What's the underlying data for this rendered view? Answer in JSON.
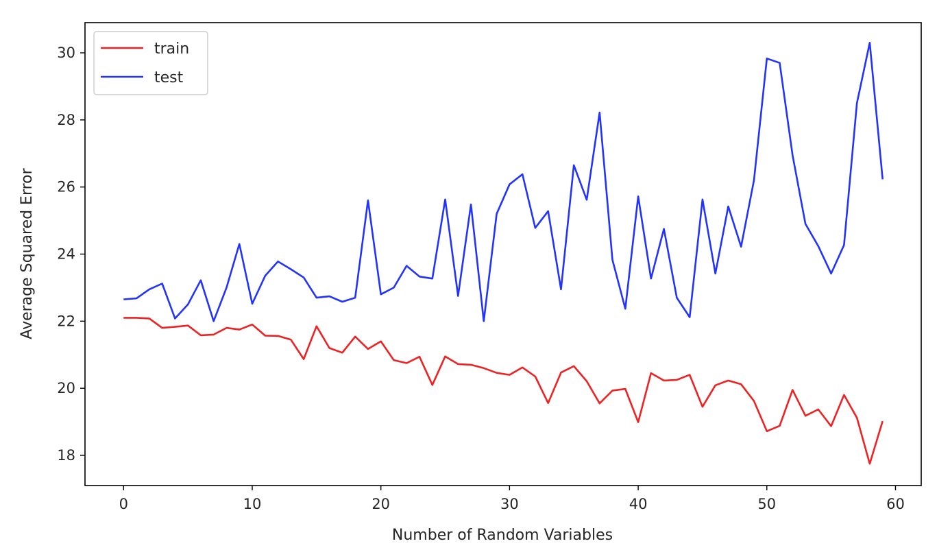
{
  "chart_data": {
    "type": "line",
    "title": "",
    "xlabel": "Number of Random Variables",
    "ylabel": "Average Squared Error",
    "xlim": [
      -3,
      62
    ],
    "ylim": [
      17.1,
      30.9
    ],
    "xticks": [
      0,
      10,
      20,
      30,
      40,
      50,
      60
    ],
    "yticks": [
      18,
      20,
      22,
      24,
      26,
      28,
      30
    ],
    "grid": false,
    "legend_position": "top-left",
    "x": [
      0,
      1,
      2,
      3,
      4,
      5,
      6,
      7,
      8,
      9,
      10,
      11,
      12,
      13,
      14,
      15,
      16,
      17,
      18,
      19,
      20,
      21,
      22,
      23,
      24,
      25,
      26,
      27,
      28,
      29,
      30,
      31,
      32,
      33,
      34,
      35,
      36,
      37,
      38,
      39,
      40,
      41,
      42,
      43,
      44,
      45,
      46,
      47,
      48,
      49,
      50,
      51,
      52,
      53,
      54,
      55,
      56,
      57,
      58,
      59
    ],
    "series": [
      {
        "name": "train",
        "color": "#ee2222",
        "values": [
          22.1,
          22.1,
          22.08,
          21.8,
          21.83,
          21.87,
          21.58,
          21.6,
          21.8,
          21.75,
          21.9,
          21.57,
          21.56,
          21.45,
          20.87,
          21.85,
          21.2,
          21.06,
          21.54,
          21.17,
          21.4,
          20.84,
          20.75,
          20.94,
          20.1,
          20.95,
          20.72,
          20.7,
          20.6,
          20.46,
          20.4,
          20.62,
          20.35,
          19.56,
          20.47,
          20.66,
          20.21,
          19.55,
          19.93,
          19.98,
          18.99,
          20.45,
          20.23,
          20.25,
          20.4,
          19.45,
          20.09,
          20.23,
          20.12,
          19.62,
          18.72,
          18.88,
          19.95,
          19.18,
          19.37,
          18.87,
          19.8,
          19.12,
          17.75,
          19.02
        ]
      },
      {
        "name": "test",
        "color": "#2233ff",
        "values": [
          22.65,
          22.68,
          22.95,
          23.12,
          22.08,
          22.5,
          23.22,
          22.0,
          23.0,
          24.3,
          22.52,
          23.35,
          23.78,
          23.55,
          23.3,
          22.7,
          22.74,
          22.58,
          22.7,
          25.6,
          22.8,
          23.0,
          23.65,
          23.33,
          23.27,
          25.63,
          22.75,
          25.48,
          22.0,
          25.2,
          26.08,
          26.38,
          24.78,
          25.28,
          22.95,
          26.65,
          25.62,
          28.22,
          23.83,
          22.37,
          25.72,
          23.27,
          24.75,
          22.7,
          22.12,
          25.63,
          23.42,
          25.42,
          24.22,
          26.2,
          29.83,
          29.7,
          26.95,
          24.9,
          24.24,
          23.42,
          24.27,
          28.5,
          30.3,
          26.23
        ]
      }
    ]
  }
}
